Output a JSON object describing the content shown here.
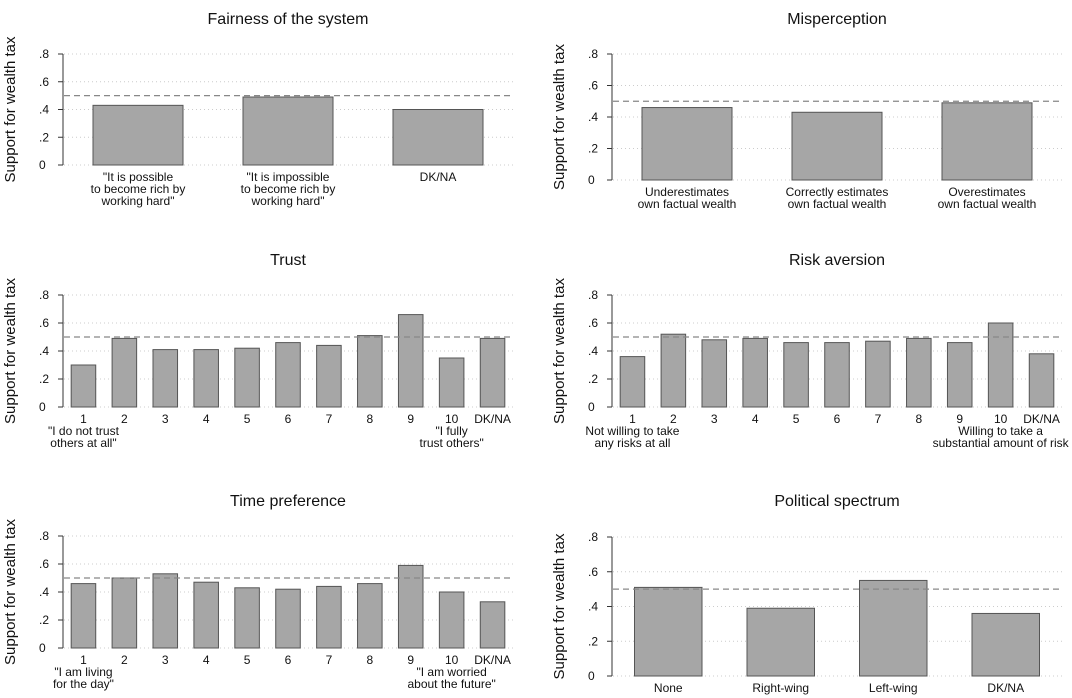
{
  "chart_data": [
    {
      "type": "bar",
      "title": "Fairness of the system",
      "ylabel": "Support for wealth tax",
      "categories": [
        [
          "\"It is possible",
          "to become rich by",
          "working hard\""
        ],
        [
          "\"It is impossible",
          "to become rich by",
          "working hard\""
        ],
        [
          "DK/NA"
        ]
      ],
      "values": [
        0.43,
        0.49,
        0.4
      ],
      "color": "#a6a6a6",
      "reference_line": 0.5,
      "ylim": [
        0,
        0.8
      ],
      "yticks": [
        0,
        {
          "value": 0.2,
          "label": ".2"
        },
        {
          "value": 0.4,
          "label": ".4"
        },
        {
          "value": 0.6,
          "label": ".6"
        },
        {
          "value": 0.8,
          "label": ".8"
        }
      ],
      "grid": true
    },
    {
      "type": "bar",
      "title": "Misperception",
      "ylabel": "Support for wealth tax",
      "categories": [
        [
          "Underestimates",
          "own factual wealth"
        ],
        [
          "Correctly estimates",
          "own factual wealth"
        ],
        [
          "Overestimates",
          "own factual wealth"
        ]
      ],
      "values": [
        0.46,
        0.43,
        0.49
      ],
      "color": "#a6a6a6",
      "reference_line": 0.5,
      "ylim": [
        0,
        0.8
      ],
      "yticks": [
        0,
        {
          "value": 0.2,
          "label": ".2"
        },
        {
          "value": 0.4,
          "label": ".4"
        },
        {
          "value": 0.6,
          "label": ".6"
        },
        {
          "value": 0.8,
          "label": ".8"
        }
      ],
      "grid": true
    },
    {
      "type": "bar",
      "title": "Trust",
      "ylabel": "Support for wealth tax",
      "categories": [
        [
          "1",
          "\"I do not trust",
          "others at all\""
        ],
        [
          "2"
        ],
        [
          "3"
        ],
        [
          "4"
        ],
        [
          "5"
        ],
        [
          "6"
        ],
        [
          "7"
        ],
        [
          "8"
        ],
        [
          "9"
        ],
        [
          "10",
          "\"I fully",
          "trust others\""
        ],
        [
          "DK/NA"
        ]
      ],
      "values": [
        0.3,
        0.49,
        0.41,
        0.41,
        0.42,
        0.46,
        0.44,
        0.51,
        0.66,
        0.35,
        0.49
      ],
      "color": "#a6a6a6",
      "reference_line": 0.5,
      "ylim": [
        0,
        0.8
      ],
      "yticks": [
        0,
        {
          "value": 0.2,
          "label": ".2"
        },
        {
          "value": 0.4,
          "label": ".4"
        },
        {
          "value": 0.6,
          "label": ".6"
        },
        {
          "value": 0.8,
          "label": ".8"
        }
      ],
      "grid": true
    },
    {
      "type": "bar",
      "title": "Risk aversion",
      "ylabel": "Support for wealth tax",
      "categories": [
        [
          "1",
          "Not willing to take",
          "any risks at all"
        ],
        [
          "2"
        ],
        [
          "3"
        ],
        [
          "4"
        ],
        [
          "5"
        ],
        [
          "6"
        ],
        [
          "7"
        ],
        [
          "8"
        ],
        [
          "9"
        ],
        [
          "10",
          "Willing to take a",
          "substantial amount of risk"
        ],
        [
          "DK/NA"
        ]
      ],
      "values": [
        0.36,
        0.52,
        0.48,
        0.49,
        0.46,
        0.46,
        0.47,
        0.49,
        0.46,
        0.6,
        0.38
      ],
      "color": "#a6a6a6",
      "reference_line": 0.5,
      "ylim": [
        0,
        0.8
      ],
      "yticks": [
        0,
        {
          "value": 0.2,
          "label": ".2"
        },
        {
          "value": 0.4,
          "label": ".4"
        },
        {
          "value": 0.6,
          "label": ".6"
        },
        {
          "value": 0.8,
          "label": ".8"
        }
      ],
      "grid": true
    },
    {
      "type": "bar",
      "title": "Time preference",
      "ylabel": "Support for wealth tax",
      "categories": [
        [
          "1",
          "\"I am living",
          "for the day\""
        ],
        [
          "2"
        ],
        [
          "3"
        ],
        [
          "4"
        ],
        [
          "5"
        ],
        [
          "6"
        ],
        [
          "7"
        ],
        [
          "8"
        ],
        [
          "9"
        ],
        [
          "10",
          "\"I am worried",
          "about the future\""
        ],
        [
          "DK/NA"
        ]
      ],
      "values": [
        0.46,
        0.5,
        0.53,
        0.47,
        0.43,
        0.42,
        0.44,
        0.46,
        0.59,
        0.4,
        0.33
      ],
      "color": "#a6a6a6",
      "reference_line": 0.5,
      "ylim": [
        0,
        0.8
      ],
      "yticks": [
        0,
        {
          "value": 0.2,
          "label": ".2"
        },
        {
          "value": 0.4,
          "label": ".4"
        },
        {
          "value": 0.6,
          "label": ".6"
        },
        {
          "value": 0.8,
          "label": ".8"
        }
      ],
      "grid": true
    },
    {
      "type": "bar",
      "title": "Political spectrum",
      "ylabel": "Support for wealth tax",
      "categories": [
        [
          "None"
        ],
        [
          "Right-wing"
        ],
        [
          "Left-wing"
        ],
        [
          "DK/NA"
        ]
      ],
      "values": [
        0.51,
        0.39,
        0.55,
        0.36
      ],
      "color": "#a6a6a6",
      "reference_line": 0.5,
      "ylim": [
        0,
        0.8
      ],
      "yticks": [
        0,
        {
          "value": 0.2,
          "label": ".2"
        },
        {
          "value": 0.4,
          "label": ".4"
        },
        {
          "value": 0.6,
          "label": ".6"
        },
        {
          "value": 0.8,
          "label": ".8"
        }
      ],
      "grid": true
    }
  ]
}
